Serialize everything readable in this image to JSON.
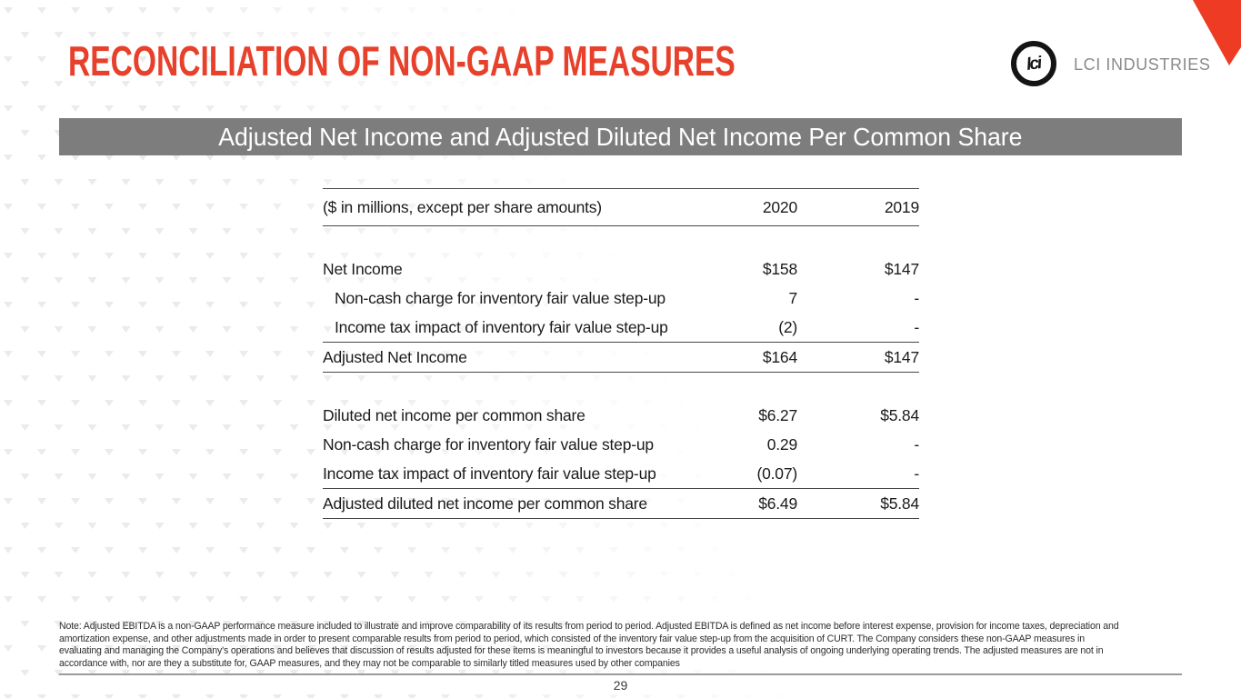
{
  "header": {
    "title": "RECONCILIATION OF NON-GAAP MEASURES",
    "logo_text": "lci",
    "company": "LCI INDUSTRIES"
  },
  "banner": {
    "text": "Adjusted Net Income and Adjusted Diluted Net Income Per Common Share"
  },
  "table": {
    "caption": "($ in millions, except per share amounts)",
    "columns": [
      "2020",
      "2019"
    ],
    "sections": [
      {
        "rows": [
          {
            "label": "Net Income",
            "v2020": "$158",
            "v2019": "$147",
            "style": "normal"
          },
          {
            "label": "Non-cash charge for inventory fair value step-up",
            "v2020": "7",
            "v2019": "-",
            "style": "indent"
          },
          {
            "label": "Income tax impact of inventory fair value step-up",
            "v2020": "(2)",
            "v2019": "-",
            "style": "indent"
          },
          {
            "label": "Adjusted Net Income",
            "v2020": "$164",
            "v2019": "$147",
            "style": "total"
          }
        ]
      },
      {
        "rows": [
          {
            "label": "Diluted net income per common share",
            "v2020": "$6.27",
            "v2019": "$5.84",
            "style": "normal"
          },
          {
            "label": "Non-cash charge for inventory fair value step-up",
            "v2020": "0.29",
            "v2019": "-",
            "style": "normal"
          },
          {
            "label": "Income tax impact of inventory fair value step-up",
            "v2020": "(0.07)",
            "v2019": "-",
            "style": "normal"
          },
          {
            "label": "Adjusted diluted net income per common share",
            "v2020": "$6.49",
            "v2019": "$5.84",
            "style": "total"
          }
        ]
      }
    ]
  },
  "footnote": {
    "lines": [
      "Note: Adjusted EBITDA is a non-GAAP performance measure included to illustrate and improve comparability of its results from period to period. Adjusted EBITDA is defined as net income before interest expense, provision for income taxes, depreciation and",
      "amortization expense, and other adjustments made in order to present comparable results from period to period, which consisted of the inventory fair value step-up from the acquisition of CURT. The Company considers these non-GAAP measures in",
      "evaluating and managing the Company's operations and believes that discussion of results adjusted for these items is meaningful to investors because it provides a useful analysis of ongoing underlying operating trends. The adjusted measures are not in",
      "accordance with, nor are they a substitute for, GAAP measures, and they may not be comparable to similarly titled measures used by other companies"
    ]
  },
  "footer": {
    "page_number": "29"
  },
  "colors": {
    "accent_red": "#e7402b",
    "corner_red": "#ee3b24",
    "banner_gray": "#7d7d7d",
    "pattern_gray": "#ebebeb",
    "table_line": "#474747"
  }
}
